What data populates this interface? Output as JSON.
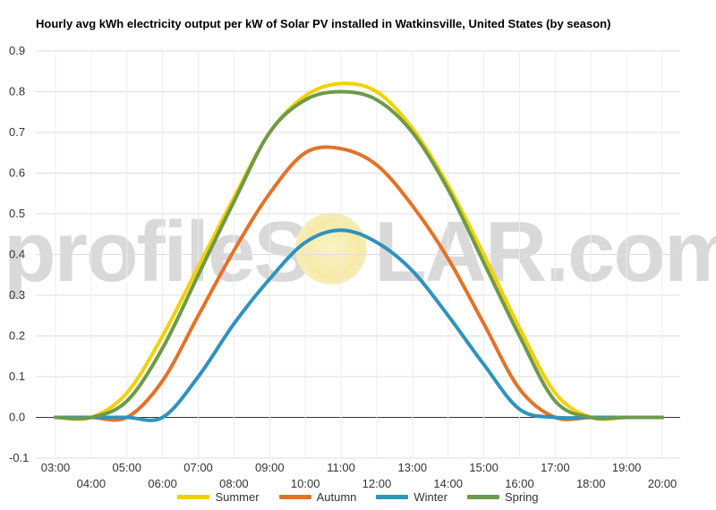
{
  "chart_data": {
    "type": "line",
    "title": "Hourly avg kWh electricity output per kW of Solar PV installed in Watkinsville, United States (by season)",
    "xlabel": "",
    "ylabel": "",
    "watermark": {
      "left": "profileS",
      "right": "LAR.com"
    },
    "ylim": [
      -0.1,
      0.9
    ],
    "yticks": [
      "-0.1",
      "0.0",
      "0.1",
      "0.2",
      "0.3",
      "0.4",
      "0.5",
      "0.6",
      "0.7",
      "0.8",
      "0.9"
    ],
    "xlim": [
      3,
      20
    ],
    "xticks": [
      "03:00",
      "04:00",
      "05:00",
      "06:00",
      "07:00",
      "08:00",
      "09:00",
      "10:00",
      "11:00",
      "12:00",
      "13:00",
      "14:00",
      "15:00",
      "16:00",
      "17:00",
      "18:00",
      "19:00",
      "20:00"
    ],
    "x": [
      3,
      4,
      5,
      6,
      7,
      8,
      9,
      10,
      11,
      12,
      13,
      14,
      15,
      16,
      17,
      18,
      19,
      20
    ],
    "grid": true,
    "legend_position": "bottom",
    "series": [
      {
        "name": "Summer",
        "color": "#f5d000",
        "values": [
          0,
          0,
          0.06,
          0.2,
          0.37,
          0.54,
          0.7,
          0.79,
          0.82,
          0.8,
          0.71,
          0.57,
          0.4,
          0.22,
          0.06,
          0,
          0,
          0
        ]
      },
      {
        "name": "Autumn",
        "color": "#e37228",
        "values": [
          0,
          0,
          0,
          0.09,
          0.25,
          0.41,
          0.55,
          0.65,
          0.66,
          0.62,
          0.52,
          0.39,
          0.23,
          0.07,
          0,
          0,
          0,
          0
        ]
      },
      {
        "name": "Winter",
        "color": "#2f93bc",
        "values": [
          0,
          0,
          0,
          0,
          0.1,
          0.23,
          0.34,
          0.43,
          0.46,
          0.43,
          0.36,
          0.25,
          0.13,
          0.02,
          0,
          0,
          0,
          0
        ]
      },
      {
        "name": "Spring",
        "color": "#6c9a4a",
        "values": [
          0,
          0,
          0.04,
          0.17,
          0.35,
          0.53,
          0.7,
          0.78,
          0.8,
          0.78,
          0.7,
          0.56,
          0.38,
          0.2,
          0.04,
          0,
          0,
          0
        ]
      }
    ]
  }
}
